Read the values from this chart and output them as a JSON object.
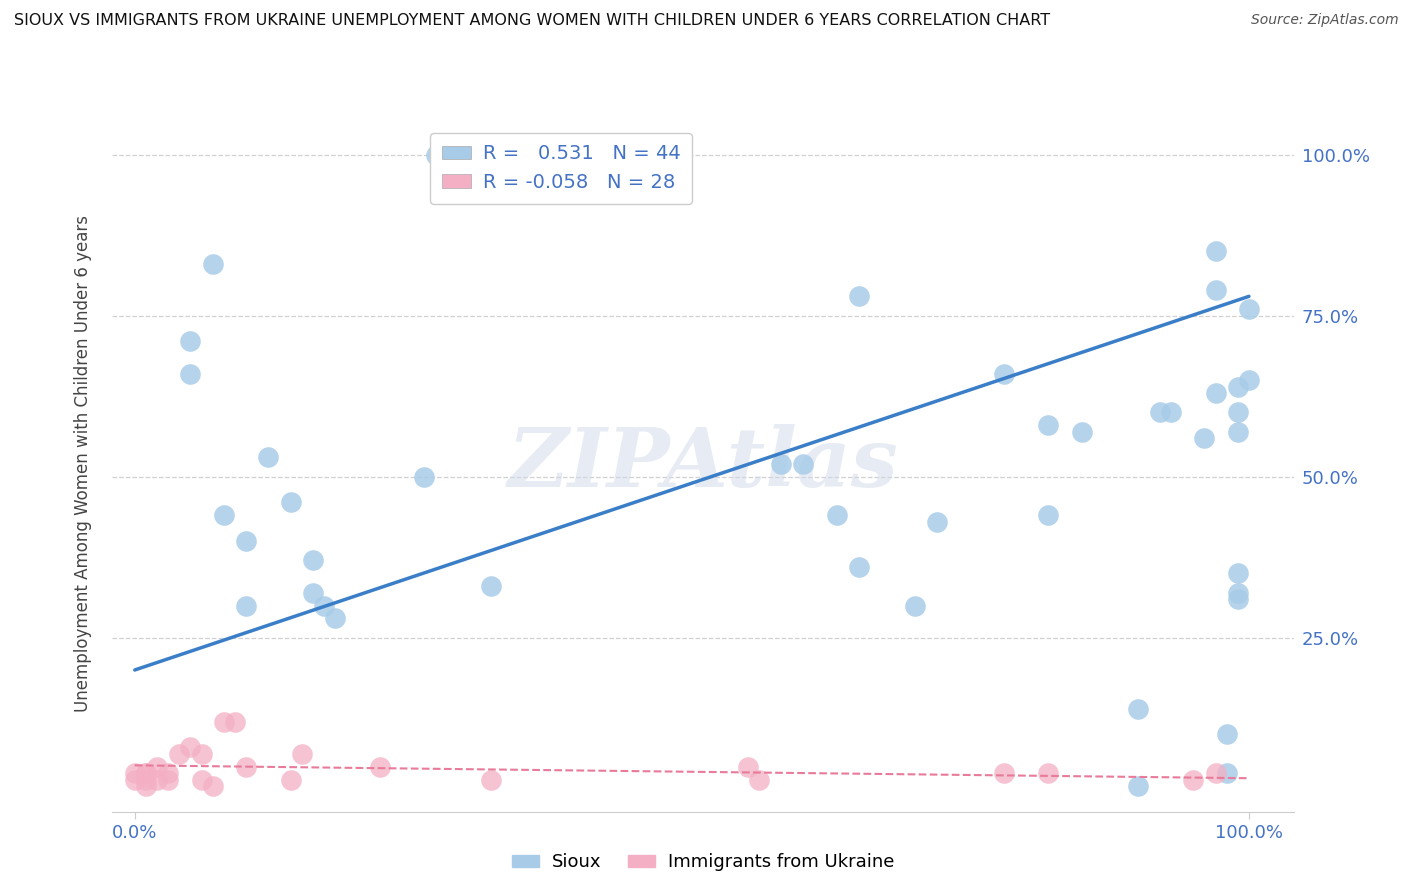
{
  "title": "SIOUX VS IMMIGRANTS FROM UKRAINE UNEMPLOYMENT AMONG WOMEN WITH CHILDREN UNDER 6 YEARS CORRELATION CHART",
  "source": "Source: ZipAtlas.com",
  "ylabel": "Unemployment Among Women with Children Under 6 years",
  "sioux_color": "#a8cce8",
  "sioux_edge_color": "#a8cce8",
  "ukraine_color": "#f4afc4",
  "ukraine_edge_color": "#f4afc4",
  "sioux_line_color": "#3a7ec8",
  "ukraine_line_color": "#e87a9a",
  "legend_sioux_R": "0.531",
  "legend_sioux_N": "44",
  "legend_ukraine_R": "-0.058",
  "legend_ukraine_N": "28",
  "watermark": "ZIPAtlas",
  "sioux_points_x": [
    0.05,
    0.05,
    0.07,
    0.08,
    0.1,
    0.1,
    0.12,
    0.14,
    0.16,
    0.16,
    0.17,
    0.18,
    0.26,
    0.27,
    0.32,
    0.58,
    0.6,
    0.63,
    0.65,
    0.7,
    0.72,
    0.78,
    0.82,
    0.82,
    0.85,
    0.9,
    0.92,
    0.93,
    0.96,
    0.97,
    0.97,
    0.98,
    0.98,
    0.99,
    0.99,
    0.99,
    1.0,
    1.0,
    0.65,
    0.99,
    0.9,
    0.97,
    0.99,
    0.99
  ],
  "sioux_points_y": [
    0.71,
    0.66,
    0.83,
    0.44,
    0.4,
    0.3,
    0.53,
    0.46,
    0.37,
    0.32,
    0.3,
    0.28,
    0.5,
    1.0,
    0.33,
    0.52,
    0.52,
    0.44,
    0.78,
    0.3,
    0.43,
    0.66,
    0.58,
    0.44,
    0.57,
    0.14,
    0.6,
    0.6,
    0.56,
    0.85,
    0.63,
    0.1,
    0.04,
    0.64,
    0.6,
    0.57,
    0.76,
    0.65,
    0.36,
    0.32,
    0.02,
    0.79,
    0.35,
    0.31
  ],
  "ukraine_points_x": [
    0.0,
    0.0,
    0.01,
    0.01,
    0.01,
    0.01,
    0.02,
    0.02,
    0.03,
    0.03,
    0.04,
    0.05,
    0.06,
    0.06,
    0.07,
    0.08,
    0.09,
    0.1,
    0.14,
    0.15,
    0.22,
    0.32,
    0.55,
    0.56,
    0.78,
    0.82,
    0.95,
    0.97
  ],
  "ukraine_points_y": [
    0.04,
    0.03,
    0.04,
    0.04,
    0.03,
    0.02,
    0.05,
    0.03,
    0.04,
    0.03,
    0.07,
    0.08,
    0.07,
    0.03,
    0.02,
    0.12,
    0.12,
    0.05,
    0.03,
    0.07,
    0.05,
    0.03,
    0.05,
    0.03,
    0.04,
    0.04,
    0.03,
    0.04
  ],
  "sioux_trendline_x": [
    0.0,
    1.0
  ],
  "sioux_trendline_y": [
    0.2,
    0.78
  ],
  "ukraine_trendline_x": [
    0.0,
    1.0
  ],
  "ukraine_trendline_y": [
    0.052,
    0.032
  ],
  "xlim": [
    -0.02,
    1.04
  ],
  "ylim": [
    -0.02,
    1.06
  ],
  "xtick_pos": [
    0.0,
    1.0
  ],
  "xtick_labels": [
    "0.0%",
    "100.0%"
  ],
  "ytick_pos": [
    0.25,
    0.5,
    0.75,
    1.0
  ],
  "ytick_labels": [
    "25.0%",
    "50.0%",
    "75.0%",
    "100.0%"
  ],
  "background_color": "#ffffff",
  "grid_color": "#d0d0d0",
  "label_color": "#4472c4",
  "tick_color": "#4472c4"
}
